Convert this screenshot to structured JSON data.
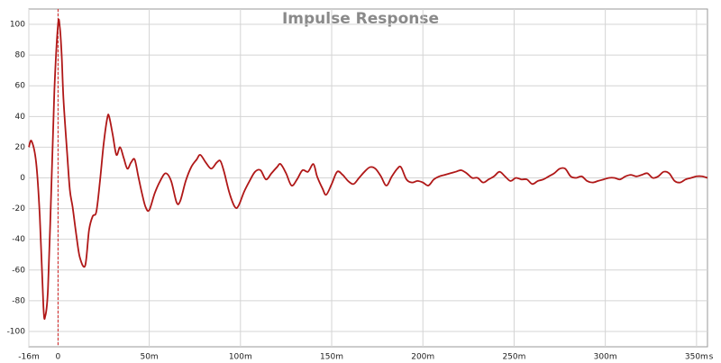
{
  "chart_data": {
    "type": "line",
    "title": "Impulse Response",
    "xlabel": "s",
    "x": [
      -16,
      -14.5,
      -12,
      -10,
      -8,
      -7,
      -5.5,
      -3.5,
      -2,
      0,
      1,
      2,
      3,
      5,
      6.5,
      8,
      10,
      12,
      14.9,
      17,
      19,
      21,
      23,
      25,
      27,
      28,
      30,
      32,
      34,
      36,
      38,
      40,
      42,
      44,
      46,
      48,
      50,
      53,
      56,
      59,
      62,
      65,
      67,
      70,
      73,
      76,
      78,
      81,
      84,
      87,
      89,
      91,
      94,
      97,
      99,
      102,
      105,
      108,
      111,
      114,
      117,
      120,
      122,
      125,
      128,
      131,
      134,
      137,
      140,
      142,
      145,
      147,
      150,
      153,
      156,
      159,
      162,
      165,
      168,
      171,
      174,
      177,
      180,
      183,
      186,
      188,
      191,
      194,
      197,
      200,
      203,
      206,
      209,
      212,
      215,
      218,
      221,
      224,
      227,
      230,
      233,
      236,
      239,
      242,
      245,
      248,
      251,
      254,
      257,
      260,
      263,
      266,
      269,
      272,
      275,
      278,
      281,
      284,
      287,
      290,
      293,
      296,
      299,
      302,
      305,
      308,
      311,
      314,
      317,
      320,
      323,
      326,
      329,
      332,
      335,
      338,
      341,
      344,
      347,
      350,
      353,
      356
    ],
    "values": [
      20,
      24,
      10,
      -25,
      -84,
      -90,
      -72,
      0,
      57,
      100,
      98,
      80,
      51,
      16,
      -8,
      -19,
      -37,
      -52,
      -57,
      -34,
      -25,
      -22,
      -2,
      22,
      39,
      40,
      28,
      15,
      20,
      13,
      6,
      10,
      12,
      1,
      -10,
      -19,
      -21,
      -10,
      -2,
      3,
      -2,
      -16,
      -15,
      -2,
      7,
      12,
      15,
      10,
      6,
      10,
      11,
      4,
      -10,
      -19,
      -18,
      -9,
      -2,
      4,
      5,
      -1,
      3,
      7,
      9,
      3,
      -5,
      -1,
      5,
      4,
      9,
      1,
      -7,
      -11,
      -4,
      4,
      2,
      -2,
      -4,
      0,
      4,
      7,
      6,
      1,
      -5,
      1,
      6,
      7,
      -1,
      -3,
      -2,
      -3,
      -5,
      -1,
      1,
      2,
      3,
      4,
      5,
      3,
      0,
      0,
      -3,
      -1,
      1,
      4,
      1,
      -2,
      0,
      -1,
      -1,
      -4,
      -2,
      -1,
      1,
      3,
      6,
      6,
      1,
      0,
      1,
      -2,
      -3,
      -2,
      -1,
      0,
      0,
      -1,
      1,
      2,
      1,
      2,
      3,
      0,
      1,
      4,
      3,
      -2,
      -3,
      -1,
      0,
      1,
      1,
      0
    ],
    "color": "#b01818",
    "xlim": [
      -16,
      356
    ],
    "xticks": [
      {
        "value": -16,
        "label": "-16m"
      },
      0,
      {
        "value": 50,
        "label": "50m"
      },
      {
        "value": 100,
        "label": "100m"
      },
      {
        "value": 150,
        "label": "150m"
      },
      {
        "value": 200,
        "label": "200m"
      },
      {
        "value": 250,
        "label": "250m"
      },
      {
        "value": 300,
        "label": "300m"
      },
      {
        "value": 350,
        "label": "350m"
      }
    ],
    "ylim": [
      -110,
      110
    ],
    "yticks": [
      -100,
      -80,
      -60,
      -40,
      -20,
      0,
      20,
      40,
      60,
      80,
      100
    ],
    "grid": true
  }
}
